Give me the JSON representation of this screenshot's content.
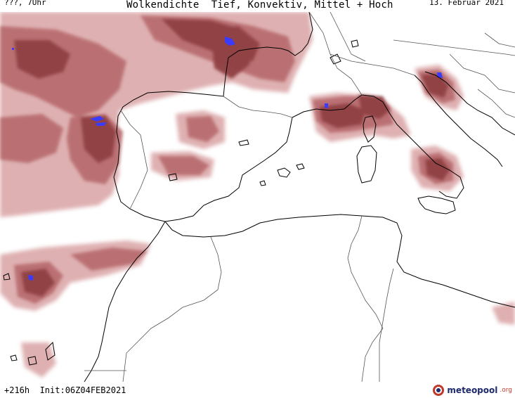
{
  "header": {
    "location_time": "???, 7Uhr",
    "title": "Wolkendichte  Tief, Konvektiv, Mittel + Hoch",
    "date": "13. Februar 2021"
  },
  "footer": {
    "forecast_info": "+216h  Init:06Z04FEB2021"
  },
  "logo": {
    "name": "meteopool",
    "tld": ".org"
  },
  "colors": {
    "cloud_dark": "#8f3f42",
    "cloud_mid": "#b76a6d",
    "cloud_light": "#d9a3a4",
    "convective": "#3b3bff",
    "coastline": "#000000",
    "border": "#555555"
  }
}
